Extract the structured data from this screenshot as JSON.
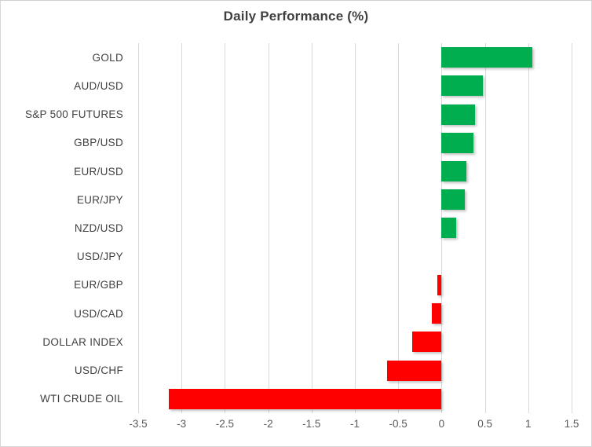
{
  "chart_data": {
    "type": "bar",
    "orientation": "horizontal",
    "title": "Daily Performance (%)",
    "categories": [
      "GOLD",
      "AUD/USD",
      "S&P 500 FUTURES",
      "GBP/USD",
      "EUR/USD",
      "EUR/JPY",
      "NZD/USD",
      "USD/JPY",
      "EUR/GBP",
      "USD/CAD",
      "DOLLAR INDEX",
      "USD/CHF",
      "WTI CRUDE OIL"
    ],
    "values": [
      1.05,
      0.48,
      0.39,
      0.37,
      0.29,
      0.27,
      0.17,
      0.0,
      -0.05,
      -0.11,
      -0.34,
      -0.63,
      -3.15
    ],
    "xlabel": "",
    "ylabel": "",
    "xlim": [
      -3.5,
      1.5
    ],
    "xticks": [
      -3.5,
      -3,
      -2.5,
      -2,
      -1.5,
      -1,
      -0.5,
      0,
      0.5,
      1,
      1.5
    ],
    "xtick_labels": [
      "-3.5",
      "-3",
      "-2.5",
      "-2",
      "-1.5",
      "-1",
      "-0.5",
      "0",
      "0.5",
      "1",
      "1.5"
    ],
    "grid": "vertical",
    "legend": "none",
    "colors": {
      "positive": "#00ae50",
      "negative": "#ff0000",
      "gridline": "#d9d9d9",
      "title_text": "#404040",
      "label_text": "#404040",
      "tick_text": "#595959"
    }
  }
}
